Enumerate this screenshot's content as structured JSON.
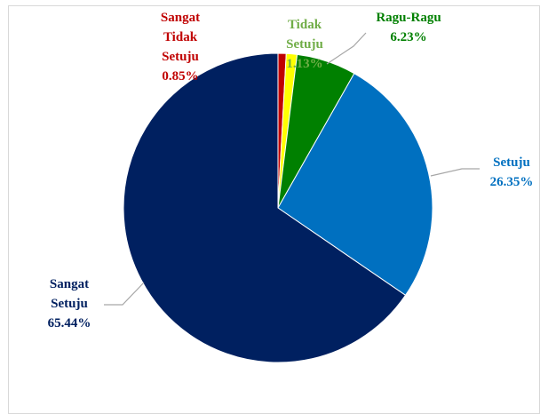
{
  "chart_data": {
    "type": "pie",
    "title": "",
    "categories": [
      "Sangat Tidak Setuju",
      "Tidak Setuju",
      "Ragu-Ragu",
      "Setuju",
      "Sangat Setuju"
    ],
    "values": [
      0.85,
      1.13,
      6.23,
      26.35,
      65.44
    ],
    "colors": [
      "#c00000",
      "#ffff00",
      "#008000",
      "#0070c0",
      "#002060"
    ],
    "label_colors": [
      "#c00000",
      "#70ad47",
      "#008000",
      "#0070c0",
      "#002060"
    ],
    "labels": [
      {
        "lines": [
          "Sangat",
          "Tidak",
          "Setuju"
        ],
        "pct": "0.85%"
      },
      {
        "lines": [
          "Tidak",
          "Setuju"
        ],
        "pct": "1.13%"
      },
      {
        "lines": [
          "Ragu-Ragu"
        ],
        "pct": "6.23%"
      },
      {
        "lines": [
          "Setuju"
        ],
        "pct": "26.35%"
      },
      {
        "lines": [
          "Sangat",
          "Setuju"
        ],
        "pct": "65.44%"
      }
    ],
    "legend": "none"
  }
}
